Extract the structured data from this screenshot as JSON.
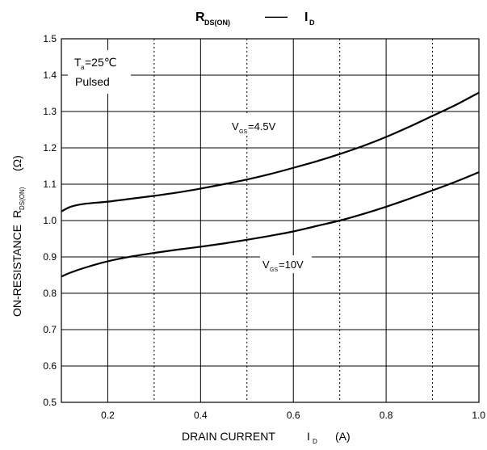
{
  "chart_data": {
    "type": "line",
    "title": {
      "left_main": "R",
      "left_sub": "DS(ON)",
      "dash": "——",
      "right_main": "I",
      "right_sub": "D"
    },
    "xlabel": {
      "text": "DRAIN CURRENT",
      "symbol": "I",
      "symbol_sub": "D",
      "unit": "(A)"
    },
    "ylabel": {
      "text": "ON-RESISTANCE",
      "symbol": "R",
      "symbol_sub": "DS(ON)",
      "unit": "(Ω)"
    },
    "xlim": [
      0.1,
      1.0
    ],
    "ylim": [
      0.5,
      1.5
    ],
    "x_ticks": [
      0.2,
      0.4,
      0.6,
      0.8,
      1.0
    ],
    "x_tick_labels": [
      "0.2",
      "0.4",
      "0.6",
      "0.8",
      "1.0"
    ],
    "y_ticks": [
      0.5,
      0.6,
      0.7,
      0.8,
      0.9,
      1.0,
      1.1,
      1.2,
      1.3,
      1.4,
      1.5
    ],
    "y_tick_labels": [
      "0.5",
      "0.6",
      "0.7",
      "0.8",
      "0.9",
      "1.0",
      "1.1",
      "1.2",
      "1.3",
      "1.4",
      "1.5"
    ],
    "x_grid_solid": [
      0.2,
      0.4,
      0.6,
      0.8
    ],
    "x_grid_dotted": [
      0.3,
      0.5,
      0.7,
      0.9
    ],
    "grid": true,
    "condition": {
      "t_main": "T",
      "t_sub": "a",
      "t_value": "=25℃",
      "mode": "Pulsed"
    },
    "series": [
      {
        "label_main": "V",
        "label_sub": "GS",
        "label_value": "=4.5V",
        "x": [
          0.1,
          0.12,
          0.15,
          0.2,
          0.25,
          0.3,
          0.35,
          0.4,
          0.45,
          0.5,
          0.55,
          0.6,
          0.65,
          0.7,
          0.75,
          0.8,
          0.85,
          0.9,
          0.95,
          1.0
        ],
        "y": [
          1.025,
          1.038,
          1.046,
          1.052,
          1.06,
          1.068,
          1.077,
          1.088,
          1.1,
          1.113,
          1.128,
          1.145,
          1.163,
          1.183,
          1.205,
          1.23,
          1.258,
          1.288,
          1.318,
          1.352
        ]
      },
      {
        "label_main": "V",
        "label_sub": "GS",
        "label_value": "=10V",
        "x": [
          0.1,
          0.12,
          0.15,
          0.2,
          0.25,
          0.3,
          0.35,
          0.4,
          0.45,
          0.5,
          0.55,
          0.6,
          0.65,
          0.7,
          0.75,
          0.8,
          0.85,
          0.9,
          0.95,
          1.0
        ],
        "y": [
          0.846,
          0.857,
          0.87,
          0.888,
          0.901,
          0.911,
          0.92,
          0.928,
          0.937,
          0.947,
          0.958,
          0.97,
          0.985,
          1.0,
          1.018,
          1.038,
          1.06,
          1.083,
          1.107,
          1.133
        ]
      }
    ]
  }
}
